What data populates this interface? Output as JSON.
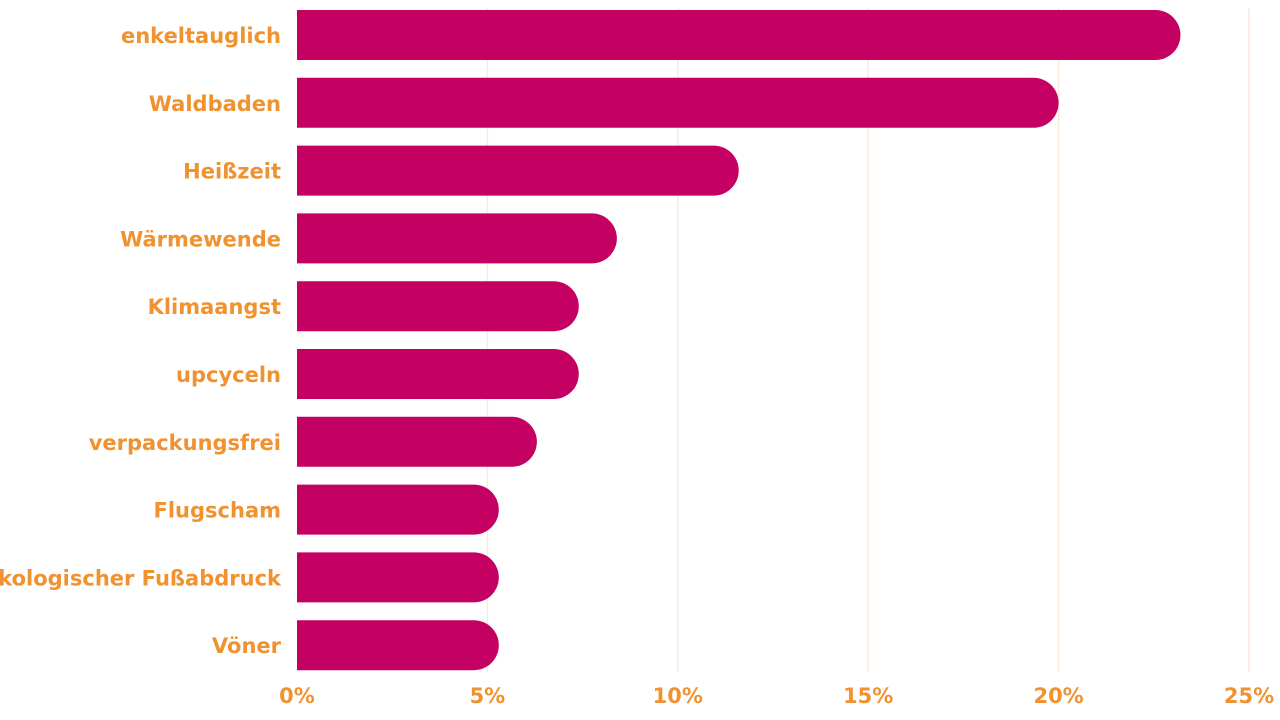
{
  "chart_data": {
    "type": "bar",
    "orientation": "horizontal",
    "categories": [
      "enkeltauglich",
      "Waldbaden",
      "Heißzeit",
      "Wärmewende",
      "Klimaangst",
      "upcyceln",
      "verpackungsfrei",
      "Flugscham",
      "ökologischer Fußabdruck",
      "Vöner"
    ],
    "values": [
      23.2,
      20.0,
      11.6,
      8.4,
      7.4,
      7.4,
      6.3,
      5.3,
      5.3,
      5.3
    ],
    "xlim": [
      0,
      25
    ],
    "xticks": [
      0,
      5,
      10,
      15,
      20,
      25
    ],
    "xtick_labels": [
      "0%",
      "5%",
      "10%",
      "15%",
      "20%",
      "25%"
    ],
    "grid": "vertical",
    "title": "",
    "xlabel": "",
    "ylabel": "",
    "colors": {
      "bar": "#c50063",
      "label": "#f0922f",
      "grid": "#fbe9dc"
    }
  }
}
